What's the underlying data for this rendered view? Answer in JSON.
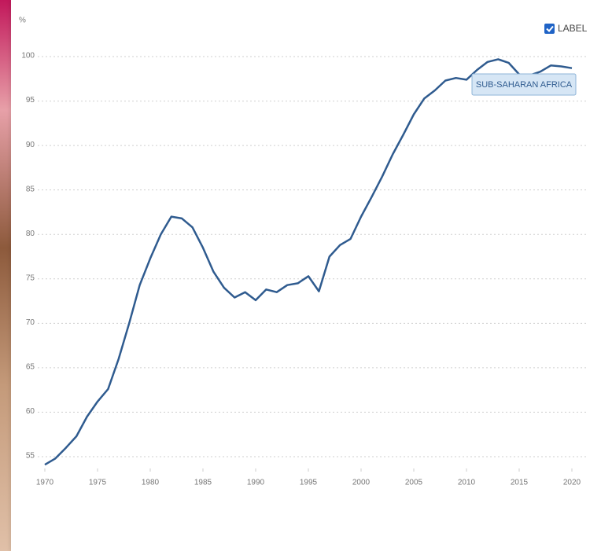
{
  "chart_data": {
    "type": "line",
    "y_label": "%",
    "toggle_label": "LABEL",
    "x": [
      1970,
      1971,
      1972,
      1973,
      1974,
      1975,
      1976,
      1977,
      1978,
      1979,
      1980,
      1981,
      1982,
      1983,
      1984,
      1985,
      1986,
      1987,
      1988,
      1989,
      1990,
      1991,
      1992,
      1993,
      1994,
      1995,
      1996,
      1997,
      1998,
      1999,
      2000,
      2001,
      2002,
      2003,
      2004,
      2005,
      2006,
      2007,
      2008,
      2009,
      2010,
      2011,
      2012,
      2013,
      2014,
      2015,
      2016,
      2017,
      2018,
      2019,
      2020
    ],
    "series": [
      {
        "name": "SUB-SAHARAN AFRICA",
        "color": "#2f5b8f",
        "values": [
          54.1,
          54.8,
          56.0,
          57.3,
          59.5,
          61.2,
          62.6,
          66.0,
          70.0,
          74.3,
          77.3,
          80.0,
          82.0,
          81.8,
          80.8,
          78.5,
          75.8,
          74.0,
          72.9,
          73.5,
          72.6,
          73.8,
          73.5,
          74.3,
          74.5,
          75.3,
          73.6,
          77.5,
          78.8,
          79.5,
          82.0,
          84.2,
          86.5,
          89.0,
          91.2,
          93.5,
          95.3,
          96.2,
          97.3,
          97.6,
          97.4,
          98.5,
          99.4,
          99.7,
          99.3,
          98.0,
          97.9,
          98.3,
          99.0,
          98.9,
          98.7
        ]
      }
    ],
    "xlim": [
      1969,
      2021
    ],
    "xticks": [
      1970,
      1975,
      1980,
      1985,
      1990,
      1995,
      2000,
      2005,
      2010,
      2015,
      2020
    ],
    "ylim": [
      54,
      101
    ],
    "yticks": [
      55,
      60,
      65,
      70,
      75,
      80,
      85,
      90,
      95,
      100
    ],
    "grid": true
  }
}
